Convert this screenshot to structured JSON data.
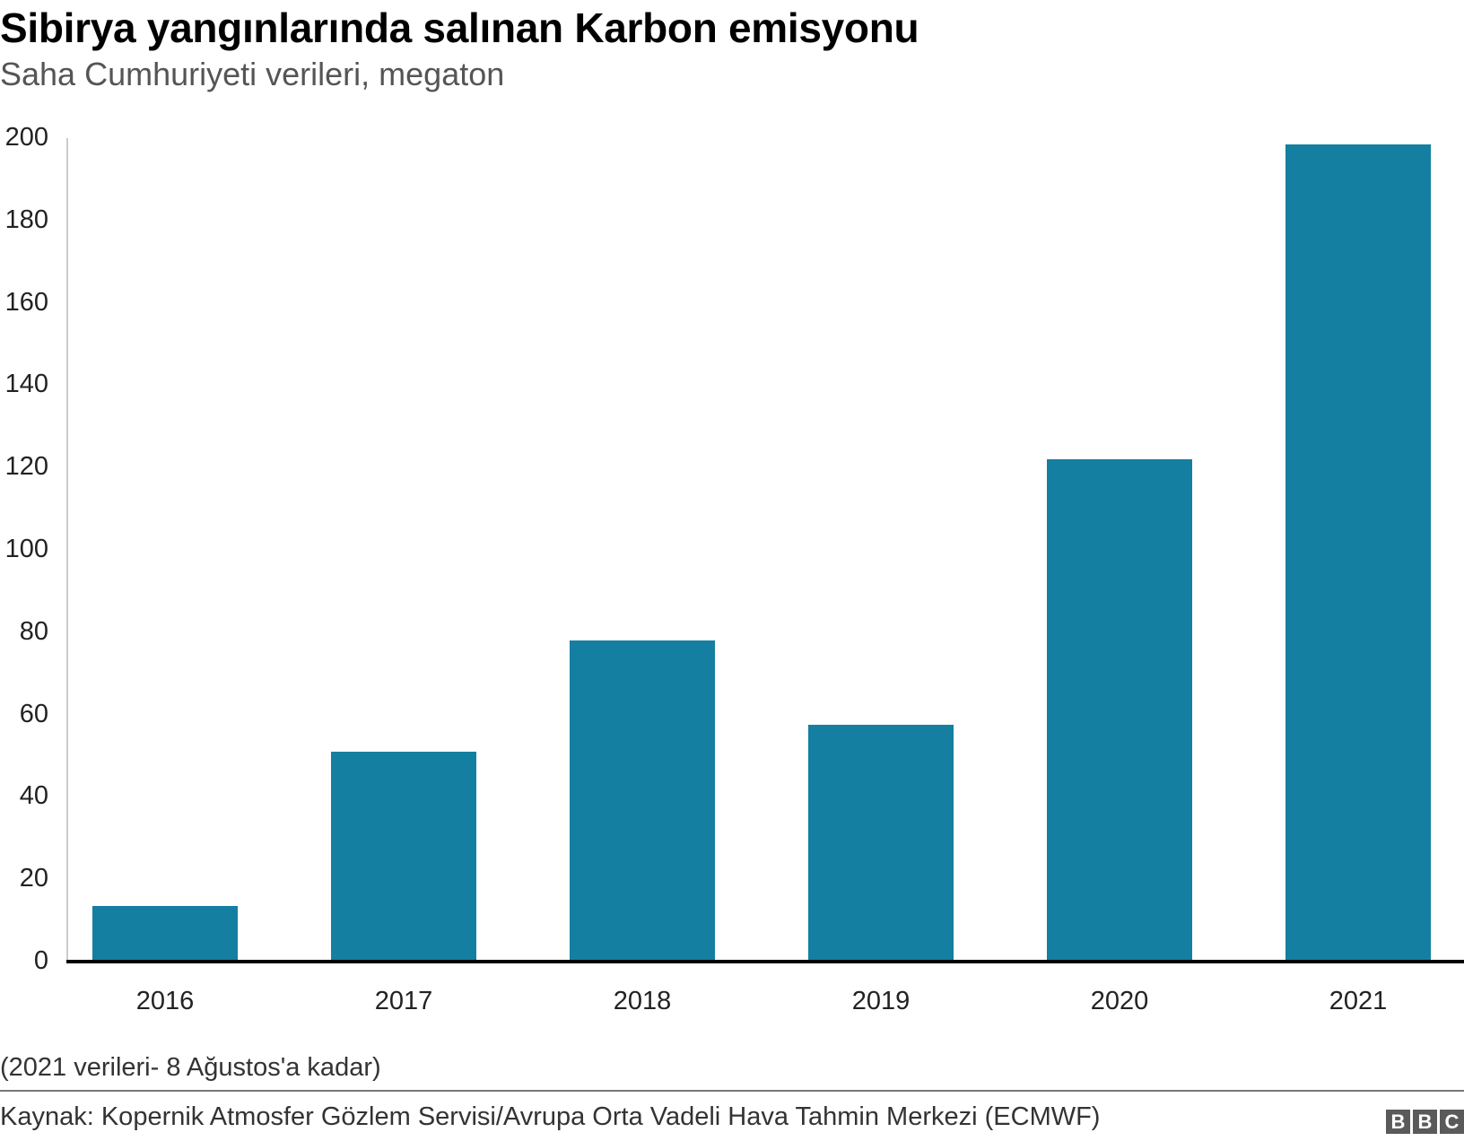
{
  "header": {
    "title": "Sibirya yangınlarında salınan Karbon emisyonu",
    "subtitle": "Saha Cumhuriyeti verileri, megaton"
  },
  "footer": {
    "note": "(2021 verileri- 8 Ağustos'a kadar)",
    "source": "Kaynak: Kopernik Atmosfer Gözlem Servisi/Avrupa Orta Vadeli Hava Tahmin Merkezi (ECMWF)",
    "logo": [
      "B",
      "B",
      "C"
    ]
  },
  "colors": {
    "bar": "#147fa1",
    "baseline": "#000000",
    "axis": "#cccccc"
  },
  "chart_data": {
    "type": "bar",
    "title": "Sibirya yangınlarında salınan Karbon emisyonu",
    "subtitle": "Saha Cumhuriyeti verileri, megaton",
    "categories": [
      "2016",
      "2017",
      "2018",
      "2019",
      "2020",
      "2021"
    ],
    "values": [
      13.5,
      51,
      78,
      57.5,
      122,
      198.5
    ],
    "xlabel": "",
    "ylabel": "megaton",
    "ylim": [
      0,
      200
    ],
    "yticks": [
      "0",
      "20",
      "40",
      "60",
      "80",
      "100",
      "120",
      "140",
      "160",
      "180",
      "200"
    ],
    "grid": false,
    "legend": "none",
    "annotations": [
      "(2021 verileri- 8 Ağustos'a kadar)"
    ]
  }
}
